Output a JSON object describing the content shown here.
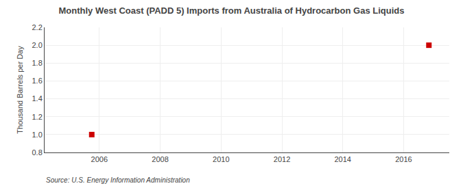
{
  "chart_data": {
    "type": "scatter",
    "title": "Monthly West Coast (PADD 5) Imports from Australia of Hydrocarbon Gas Liquids",
    "ylabel": "Thousand Barrels per Day",
    "source": "Source: U.S. Energy Information Administration",
    "x": [
      2005.75,
      2016.83
    ],
    "values": [
      1.0,
      2.0
    ],
    "color": "#cc0000",
    "marker": "square",
    "xlim": [
      2004.2,
      2017.5
    ],
    "ylim": [
      0.8,
      2.2
    ],
    "xticks": [
      2006,
      2008,
      2010,
      2012,
      2014,
      2016
    ],
    "yticks": [
      0.8,
      {
        "value": 1.0,
        "label": "1.0"
      },
      1.2,
      1.4,
      1.6,
      1.8,
      {
        "value": 2.0,
        "label": "2.0"
      },
      2.2
    ],
    "grid": true
  }
}
